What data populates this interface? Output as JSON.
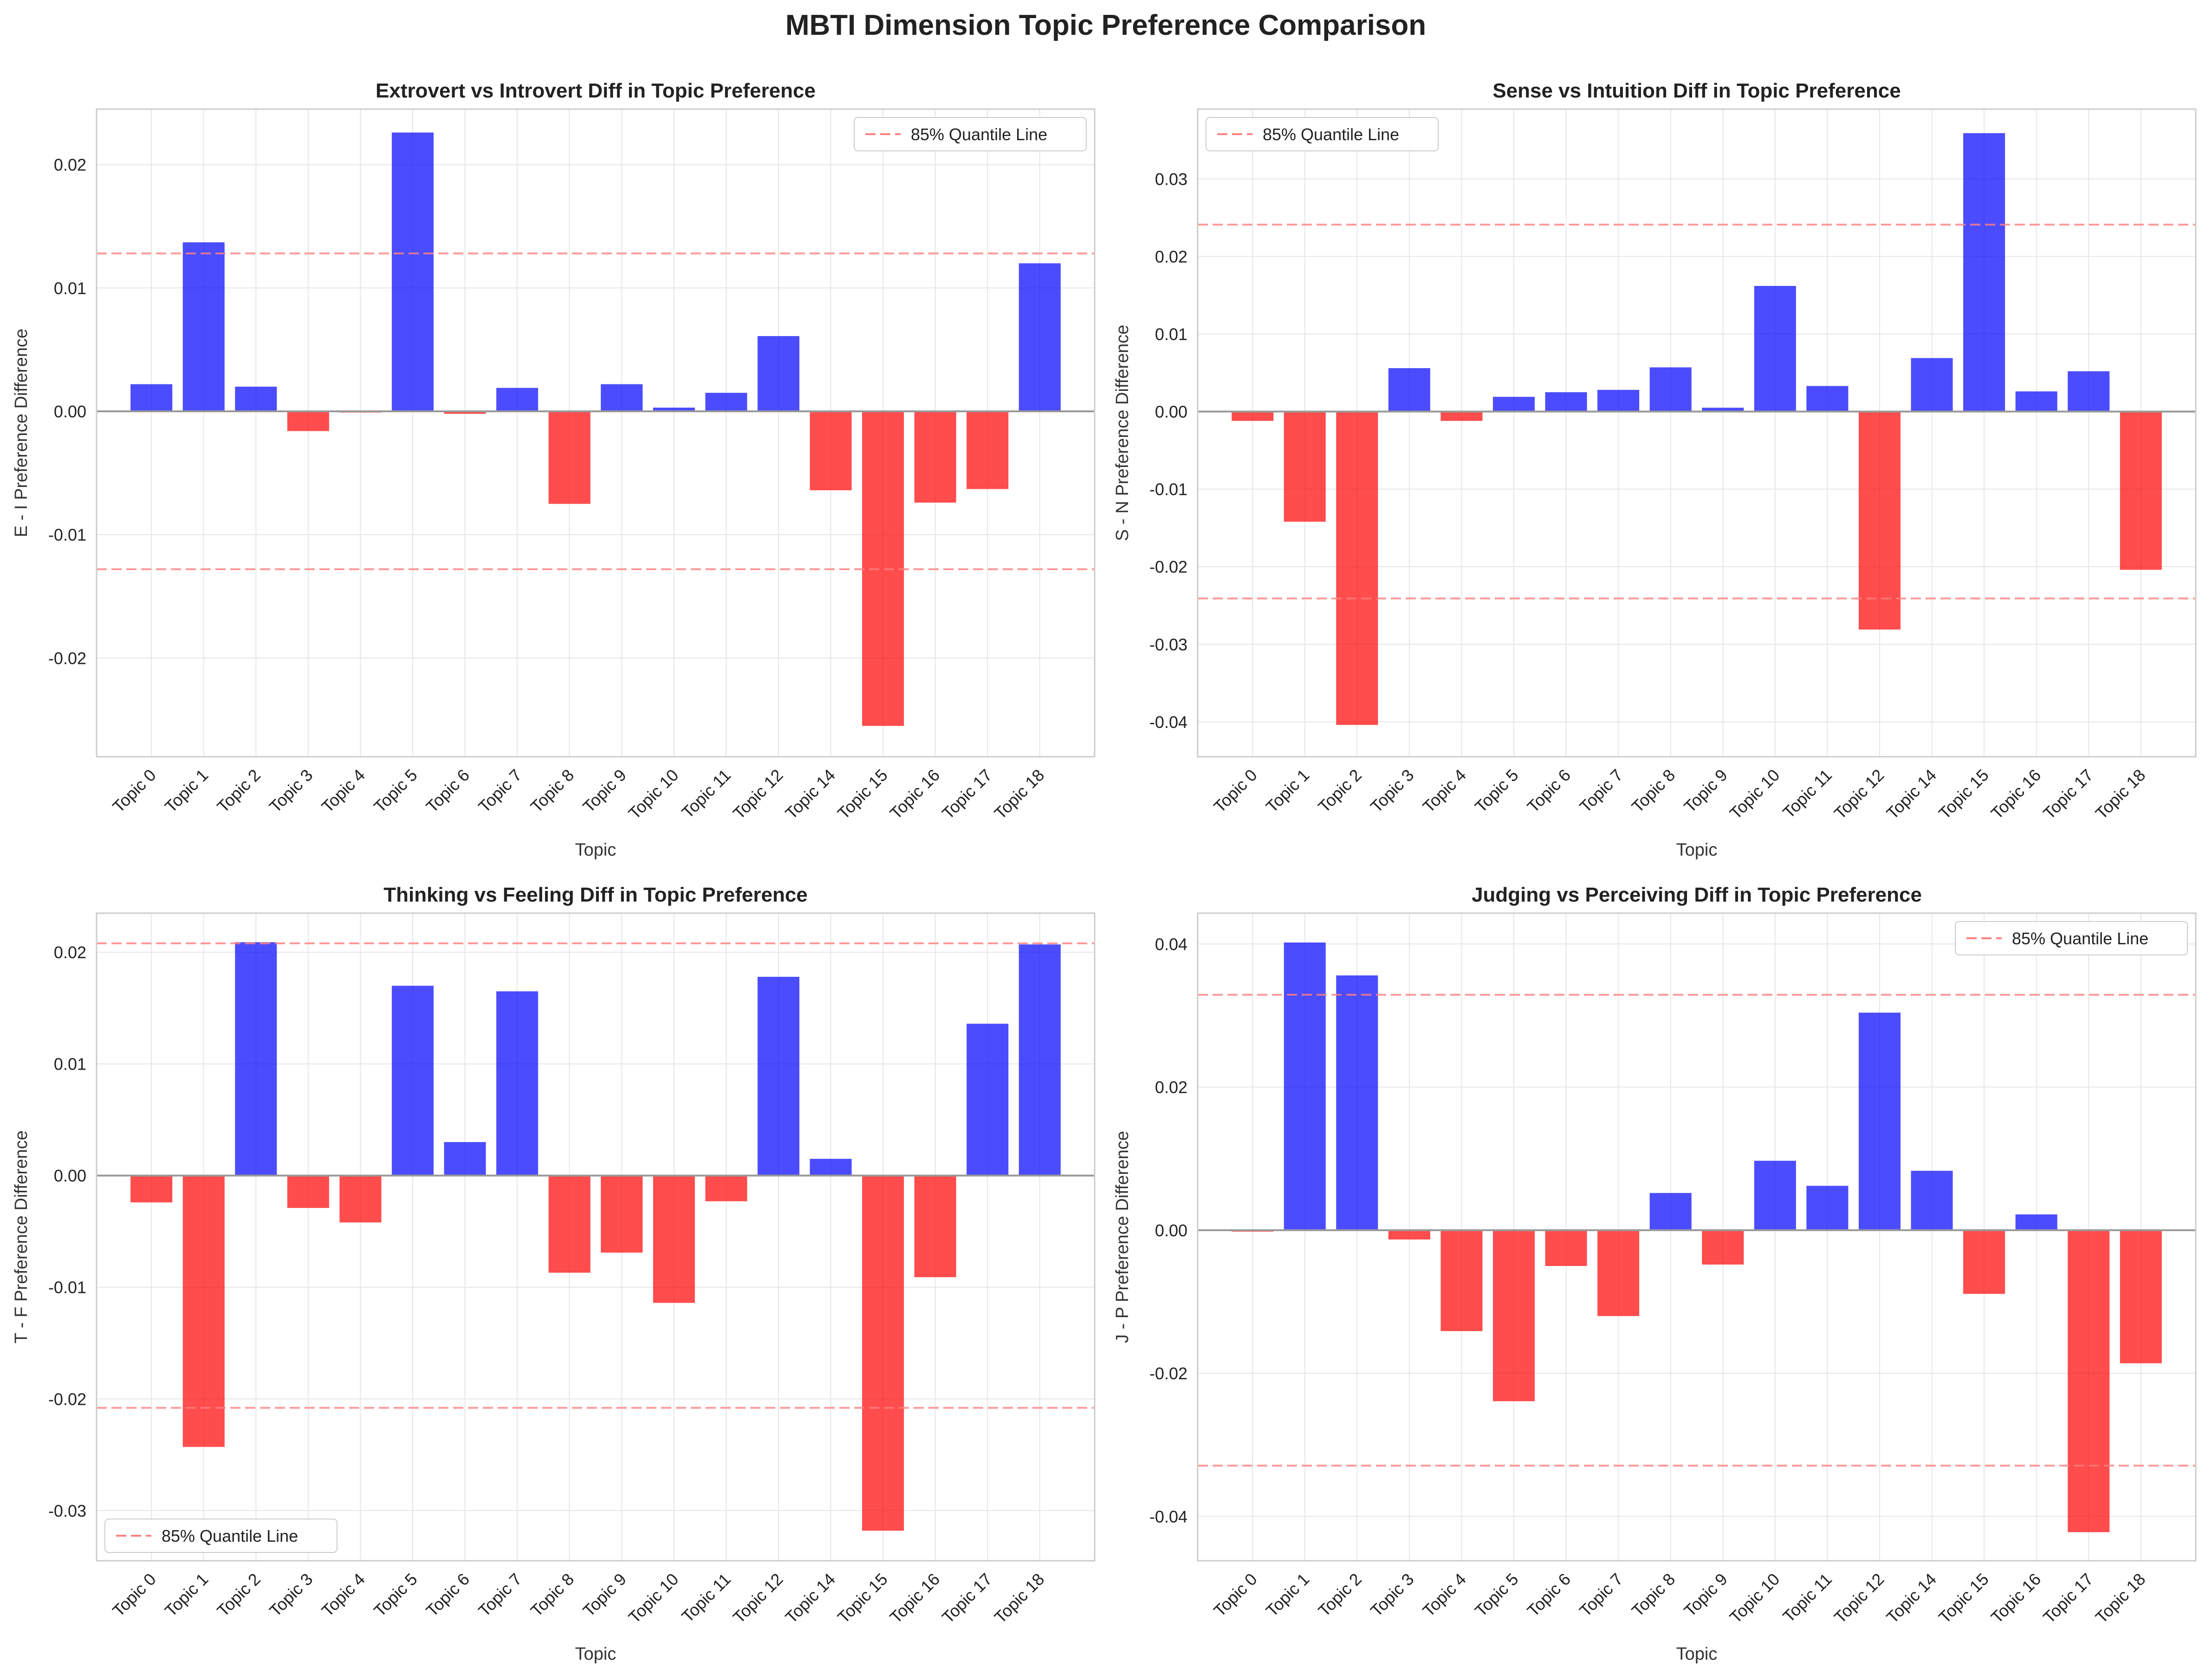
{
  "figure": {
    "title": "MBTI Dimension Topic Preference Comparison"
  },
  "colors": {
    "positive": "#0000ff",
    "negative": "#ff0000",
    "quantile": "#ff8080",
    "grid": "#e6e6e6",
    "frame": "#cccccc",
    "zero": "#999999"
  },
  "chart_data": [
    {
      "type": "bar",
      "title": "Extrovert vs Introvert Diff in Topic Preference",
      "xlabel": "Topic",
      "ylabel": "E - I Preference Difference",
      "categories": [
        "Topic 0",
        "Topic 1",
        "Topic 2",
        "Topic 3",
        "Topic 4",
        "Topic 5",
        "Topic 6",
        "Topic 7",
        "Topic 8",
        "Topic 9",
        "Topic 10",
        "Topic 11",
        "Topic 12",
        "Topic 14",
        "Topic 15",
        "Topic 16",
        "Topic 17",
        "Topic 18"
      ],
      "values": [
        0.0022,
        0.0137,
        0.002,
        -0.0016,
        -0.0001,
        0.0226,
        -0.0002,
        0.0019,
        -0.0075,
        0.0022,
        0.0003,
        0.0015,
        0.0061,
        -0.0064,
        -0.0255,
        -0.0074,
        -0.0063,
        0.012
      ],
      "ylim": [
        -0.028,
        0.0245
      ],
      "yticks": [
        -0.02,
        -0.01,
        0.0,
        0.01,
        0.02
      ],
      "ytick_labels": [
        "-0.02",
        "-0.01",
        "0.00",
        "0.01",
        "0.02"
      ],
      "quantile": 0.0128,
      "legend": {
        "label": "85% Quantile Line",
        "position": "top-right"
      },
      "grid": true
    },
    {
      "type": "bar",
      "title": "Sense vs Intuition Diff in Topic Preference",
      "xlabel": "Topic",
      "ylabel": "S - N Preference Difference",
      "categories": [
        "Topic 0",
        "Topic 1",
        "Topic 2",
        "Topic 3",
        "Topic 4",
        "Topic 5",
        "Topic 6",
        "Topic 7",
        "Topic 8",
        "Topic 9",
        "Topic 10",
        "Topic 11",
        "Topic 12",
        "Topic 14",
        "Topic 15",
        "Topic 16",
        "Topic 17",
        "Topic 18"
      ],
      "values": [
        -0.0012,
        -0.0142,
        -0.0404,
        0.0056,
        -0.0012,
        0.0019,
        0.0025,
        0.0028,
        0.0057,
        0.0005,
        0.0162,
        0.0033,
        -0.0281,
        0.0069,
        0.0359,
        0.0026,
        0.0052,
        -0.0204
      ],
      "ylim": [
        -0.0445,
        0.039
      ],
      "yticks": [
        -0.04,
        -0.03,
        -0.02,
        -0.01,
        0.0,
        0.01,
        0.02,
        0.03
      ],
      "ytick_labels": [
        "-0.04",
        "-0.03",
        "-0.02",
        "-0.01",
        "0.00",
        "0.01",
        "0.02",
        "0.03"
      ],
      "quantile": 0.0241,
      "legend": {
        "label": "85% Quantile Line",
        "position": "top-left"
      },
      "grid": true
    },
    {
      "type": "bar",
      "title": "Thinking vs Feeling Diff in Topic Preference",
      "xlabel": "Topic",
      "ylabel": "T - F Preference Difference",
      "categories": [
        "Topic 0",
        "Topic 1",
        "Topic 2",
        "Topic 3",
        "Topic 4",
        "Topic 5",
        "Topic 6",
        "Topic 7",
        "Topic 8",
        "Topic 9",
        "Topic 10",
        "Topic 11",
        "Topic 12",
        "Topic 14",
        "Topic 15",
        "Topic 16",
        "Topic 17",
        "Topic 18"
      ],
      "values": [
        -0.0024,
        -0.0243,
        0.0209,
        -0.0029,
        -0.0042,
        0.017,
        0.003,
        0.0165,
        -0.0087,
        -0.0069,
        -0.0114,
        -0.0023,
        0.0178,
        0.0015,
        -0.0318,
        -0.0091,
        0.0136,
        0.0207
      ],
      "ylim": [
        -0.0345,
        0.0235
      ],
      "yticks": [
        -0.03,
        -0.02,
        -0.01,
        0.0,
        0.01,
        0.02
      ],
      "ytick_labels": [
        "-0.03",
        "-0.02",
        "-0.01",
        "0.00",
        "0.01",
        "0.02"
      ],
      "quantile": 0.0208,
      "legend": {
        "label": "85% Quantile Line",
        "position": "bottom-left"
      },
      "grid": true
    },
    {
      "type": "bar",
      "title": "Judging vs Perceiving Diff in Topic Preference",
      "xlabel": "Topic",
      "ylabel": "J - P Preference Difference",
      "categories": [
        "Topic 0",
        "Topic 1",
        "Topic 2",
        "Topic 3",
        "Topic 4",
        "Topic 5",
        "Topic 6",
        "Topic 7",
        "Topic 8",
        "Topic 9",
        "Topic 10",
        "Topic 11",
        "Topic 12",
        "Topic 14",
        "Topic 15",
        "Topic 16",
        "Topic 17",
        "Topic 18"
      ],
      "values": [
        -0.0002,
        0.0402,
        0.0356,
        -0.0013,
        -0.0141,
        -0.0239,
        -0.005,
        -0.012,
        0.0052,
        -0.0048,
        0.0097,
        0.0062,
        0.0304,
        0.0083,
        -0.0089,
        0.0022,
        -0.0422,
        -0.0186
      ],
      "ylim": [
        -0.0462,
        0.0443
      ],
      "yticks": [
        -0.04,
        -0.02,
        0.0,
        0.02,
        0.04
      ],
      "ytick_labels": [
        "-0.04",
        "-0.02",
        "0.00",
        "0.02",
        "0.04"
      ],
      "quantile": 0.0329,
      "legend": {
        "label": "85% Quantile Line",
        "position": "top-right"
      },
      "grid": true
    }
  ]
}
